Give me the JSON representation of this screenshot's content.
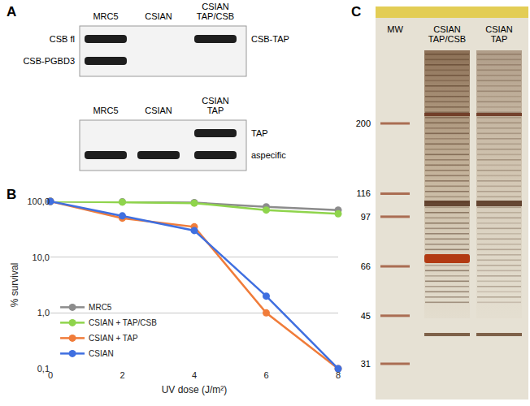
{
  "panels": [
    {
      "label": "A",
      "blots": [
        {
          "lanes": [
            "MRC5",
            "CSIAN",
            "CSIAN TAP/CSB"
          ],
          "bands": [
            {
              "label": "CSB fl",
              "side": "left",
              "lanes": [
                0
              ]
            },
            {
              "label": "CSB-PGBD3",
              "side": "left",
              "lanes": [
                0
              ]
            },
            {
              "label": "CSB-TAP",
              "side": "right",
              "lanes": [
                2
              ]
            }
          ]
        },
        {
          "lanes": [
            "MRC5",
            "CSIAN",
            "CSIAN TAP"
          ],
          "bands": [
            {
              "label": "TAP",
              "side": "right",
              "lanes": [
                2
              ]
            },
            {
              "label": "aspecific",
              "side": "right",
              "lanes": [
                0,
                1,
                2
              ]
            }
          ]
        }
      ]
    },
    {
      "label": "B"
    },
    {
      "label": "C",
      "lanes": [
        "MW",
        "CSIAN TAP/CSB",
        "CSIAN TAP"
      ],
      "mw_markers": [
        200,
        116,
        97,
        66,
        45,
        31
      ]
    }
  ],
  "chart_data": {
    "type": "line",
    "x_label": "UV dose (J/m²)",
    "y_label": "% survival",
    "x": [
      0,
      2,
      4,
      6,
      8
    ],
    "series": [
      {
        "name": "MRC5",
        "color": "#8c8c8c",
        "values": [
          100,
          98,
          95,
          80,
          70
        ]
      },
      {
        "name": "CSIAN + TAP/CSB",
        "color": "#8fd44c",
        "values": [
          100,
          97,
          93,
          70,
          60
        ]
      },
      {
        "name": "CSIAN + TAP",
        "color": "#f07c3a",
        "values": [
          100,
          50,
          35,
          1.0,
          0.1
        ]
      },
      {
        "name": "CSIAN",
        "color": "#3f6fe0",
        "values": [
          100,
          55,
          30,
          2.0,
          0.1
        ]
      }
    ],
    "xlim": [
      0,
      8
    ],
    "xticks": [
      0,
      2,
      4,
      6,
      8
    ],
    "ylim": [
      0.1,
      100
    ],
    "yticks": [
      {
        "value": 0.1,
        "label": "0,1"
      },
      {
        "value": 1,
        "label": "1,0"
      },
      {
        "value": 10,
        "label": "10,0"
      },
      {
        "value": 100,
        "label": "100,0"
      }
    ],
    "log": "y",
    "grid": true,
    "legend": "lower left",
    "marker": "circle"
  }
}
